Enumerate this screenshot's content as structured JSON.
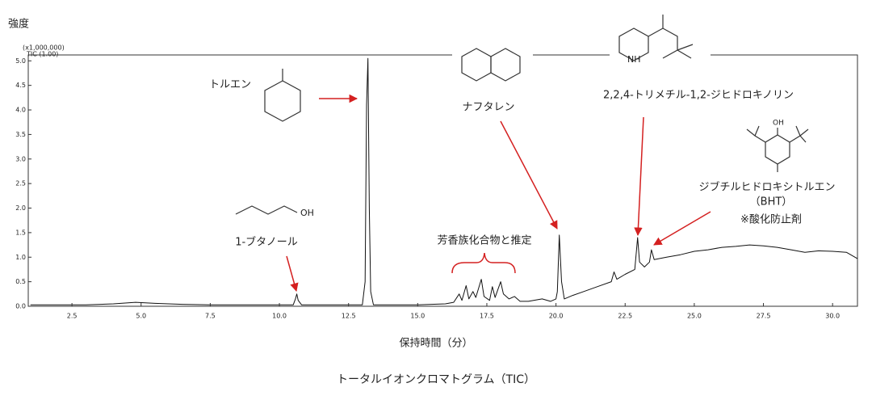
{
  "chart_data": {
    "type": "line",
    "y_axis_label": "強度",
    "y_unit": "(x1,000,000)",
    "x_axis_label": "保持時間（分）",
    "caption": "トータルイオンクロマトグラム（TIC）",
    "annotations": [
      "トルエン",
      "1-ブタノール",
      "ナフタレン",
      "2,2,4-トリメチル-1,2-ジヒドロキノリン",
      "ジブチルヒドロキシトルエン",
      "（BHT）",
      "※酸化防止剤",
      "芳香族化合物と推定"
    ],
    "structure_labels": [
      "OH",
      "NH",
      "OH"
    ],
    "xlim": [
      0.92,
      30.9
    ],
    "ylim": [
      0,
      5.12
    ],
    "xticks": [
      2.5,
      {
        "value": 5,
        "label": "5.0"
      },
      7.5,
      {
        "value": 10,
        "label": "10.0"
      },
      12.5,
      {
        "value": 15,
        "label": "15.0"
      },
      17.5,
      {
        "value": 20,
        "label": "20.0"
      },
      22.5,
      {
        "value": 25,
        "label": "25.0"
      },
      27.5,
      {
        "value": 30,
        "label": "30.0"
      }
    ],
    "yticks": [
      {
        "value": 0,
        "label": "0.0"
      },
      0.5,
      {
        "value": 1,
        "label": "1.0"
      },
      1.5,
      {
        "value": 2,
        "label": "2.0"
      },
      2.5,
      {
        "value": 3,
        "label": "3.0"
      },
      3.5,
      {
        "value": 4,
        "label": "4.0"
      },
      4.5,
      {
        "value": 5,
        "label": "5.0"
      }
    ],
    "x": [
      1.0,
      2.0,
      3.0,
      4.0,
      4.8,
      5.5,
      6.5,
      7.5,
      8.5,
      9.5,
      10.5,
      10.58,
      10.63,
      10.68,
      10.8,
      12.0,
      13.0,
      13.1,
      13.15,
      13.2,
      13.25,
      13.3,
      13.4,
      15.0,
      16.0,
      16.3,
      16.5,
      16.6,
      16.75,
      16.85,
      17.0,
      17.1,
      17.3,
      17.4,
      17.6,
      17.7,
      17.8,
      18.0,
      18.1,
      18.3,
      18.5,
      18.7,
      19.0,
      19.5,
      19.8,
      20.0,
      20.05,
      20.12,
      20.2,
      20.3,
      20.6,
      21.0,
      21.5,
      22.0,
      22.1,
      22.2,
      22.5,
      22.85,
      22.95,
      23.02,
      23.2,
      23.38,
      23.45,
      23.55,
      24.0,
      24.5,
      25.0,
      25.5,
      26.0,
      26.5,
      27.0,
      27.5,
      28.0,
      28.5,
      29.0,
      29.5,
      30.0,
      30.5,
      30.9
    ],
    "series": [
      {
        "name": "TIC (1.00)",
        "color": "#111111",
        "values": [
          0.03,
          0.03,
          0.03,
          0.05,
          0.08,
          0.06,
          0.04,
          0.03,
          0.03,
          0.03,
          0.03,
          0.15,
          0.25,
          0.12,
          0.03,
          0.03,
          0.03,
          0.5,
          4.1,
          5.05,
          2.0,
          0.3,
          0.03,
          0.03,
          0.05,
          0.08,
          0.25,
          0.12,
          0.42,
          0.15,
          0.3,
          0.18,
          0.55,
          0.2,
          0.12,
          0.4,
          0.18,
          0.5,
          0.25,
          0.15,
          0.2,
          0.1,
          0.1,
          0.15,
          0.1,
          0.15,
          0.3,
          1.45,
          0.5,
          0.15,
          0.22,
          0.3,
          0.4,
          0.5,
          0.7,
          0.55,
          0.65,
          0.75,
          1.4,
          0.9,
          0.8,
          0.9,
          1.15,
          0.95,
          1.0,
          1.05,
          1.12,
          1.15,
          1.2,
          1.22,
          1.25,
          1.23,
          1.2,
          1.15,
          1.1,
          1.13,
          1.12,
          1.1,
          0.97
        ]
      }
    ]
  }
}
